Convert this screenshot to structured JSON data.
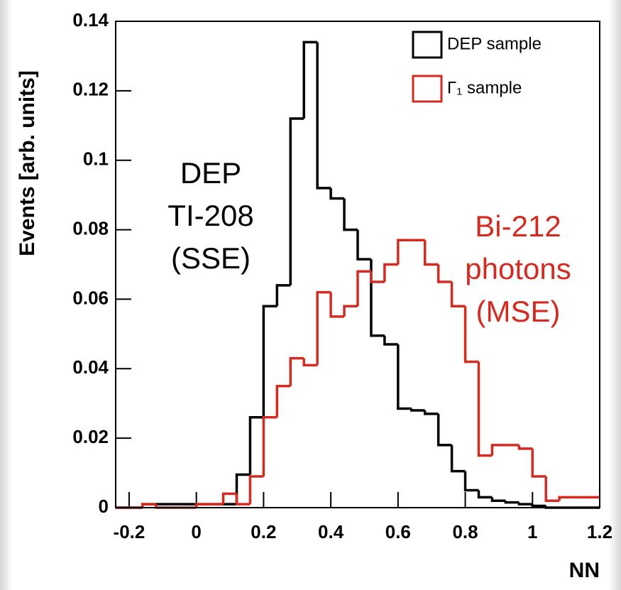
{
  "chart_data": {
    "type": "histogram",
    "xlabel": "NN",
    "ylabel": "Events [arb. units]",
    "bins": [
      -0.24,
      -0.2,
      -0.16,
      -0.12,
      -0.08,
      -0.04,
      0,
      0.04,
      0.08,
      0.12,
      0.16,
      0.2,
      0.24,
      0.28,
      0.32,
      0.36,
      0.4,
      0.44,
      0.48,
      0.52,
      0.56,
      0.6,
      0.64,
      0.68,
      0.72,
      0.76,
      0.8,
      0.84,
      0.88,
      0.92,
      0.96,
      1,
      1.04,
      1.08,
      1.12,
      1.16,
      1.2
    ],
    "series": [
      {
        "name": "DEP sample",
        "color": "#000000",
        "values": [
          0,
          0,
          0.001,
          0.001,
          0.001,
          0.001,
          0.001,
          0.001,
          0.001,
          0.0095,
          0.026,
          0.058,
          0.064,
          0.112,
          0.134,
          0.092,
          0.089,
          0.08,
          0.0715,
          0.0495,
          0.047,
          0.0285,
          0.028,
          0.027,
          0.018,
          0.0105,
          0.005,
          0.003,
          0.002,
          0.0015,
          0.001,
          0.0005,
          0,
          0,
          0,
          0
        ]
      },
      {
        "name": "Γ₁ sample",
        "color": "#d42a20",
        "values": [
          0,
          0,
          0.001,
          0,
          0,
          0,
          0.001,
          0.001,
          0.004,
          0.001,
          0.009,
          0.026,
          0.035,
          0.043,
          0.041,
          0.062,
          0.055,
          0.058,
          0.068,
          0.065,
          0.07,
          0.077,
          0.077,
          0.07,
          0.065,
          0.058,
          0.042,
          0.015,
          0.018,
          0.018,
          0.017,
          0.009,
          0.002,
          0.003,
          0.003,
          0.003
        ]
      }
    ],
    "annotations": [
      {
        "lines": [
          "DEP",
          "TI-208",
          "(SSE)"
        ],
        "color": "#000000"
      },
      {
        "lines": [
          "Bi-212",
          "photons",
          "(MSE)"
        ],
        "color": "#d42a20"
      }
    ],
    "xlim": [
      -0.24,
      1.2
    ],
    "ylim": [
      0,
      0.14
    ],
    "xticks": [
      -0.2,
      0,
      0.2,
      0.4,
      0.6,
      0.8,
      1,
      1.2
    ],
    "yticks": [
      0,
      0.02,
      0.04,
      0.06,
      0.08,
      0.1,
      0.12,
      0.14
    ],
    "legend": "upper right"
  }
}
